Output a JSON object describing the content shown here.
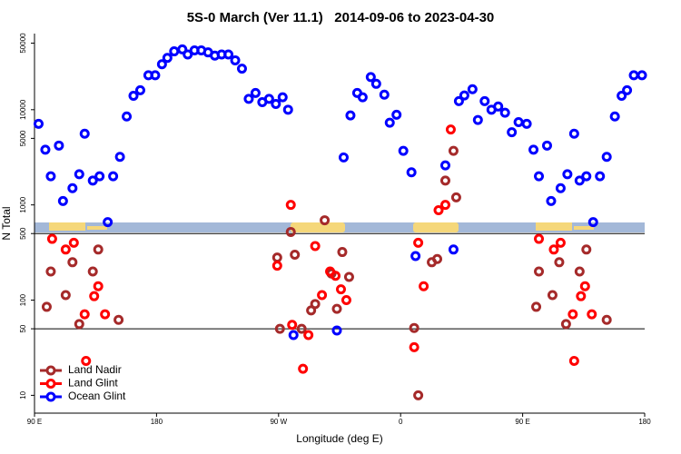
{
  "chart_data": {
    "type": "scatter",
    "title": "5S-0 March (Ver 11.1)   2014-09-06 to 2023-04-30",
    "xlabel": "Longitude (deg E)",
    "ylabel": "N Total",
    "xlim": [
      90,
      540
    ],
    "xticks": [
      {
        "value": 90,
        "label": "90 E"
      },
      180,
      {
        "value": 270,
        "label": "90 W"
      },
      {
        "value": 360,
        "label": "0"
      },
      {
        "value": 450,
        "label": "90 E"
      },
      {
        "value": 540,
        "label": "180"
      }
    ],
    "ylim": [
      6.5,
      63000
    ],
    "log_y": true,
    "yticks": [
      10,
      50,
      100,
      500,
      1000,
      5000,
      10000,
      50000
    ],
    "hlines": [
      50,
      500
    ],
    "legend": "lower left",
    "series": [
      {
        "name": "Land Nadir",
        "color": "#a52a2a",
        "x": [
          99,
          102,
          113,
          118,
          123,
          133,
          137,
          152,
          269,
          271,
          279,
          282,
          287,
          294,
          297,
          304,
          309,
          313,
          317,
          322,
          370,
          373,
          383,
          387,
          393,
          399,
          401,
          460,
          462,
          472,
          477,
          482,
          492,
          497,
          512
        ],
        "values": [
          85,
          200,
          113,
          250,
          56,
          200,
          340,
          62,
          280,
          50,
          520,
          300,
          50,
          78,
          91,
          690,
          190,
          81,
          320,
          175,
          51,
          10,
          250,
          270,
          1800,
          3700,
          1200,
          85,
          200,
          113,
          250,
          56,
          200,
          340,
          62
        ]
      },
      {
        "name": "Land Glint",
        "color": "#ff0000",
        "x": [
          103,
          113,
          119,
          127,
          134,
          137,
          142,
          128,
          279,
          269,
          280,
          288,
          292,
          297,
          302,
          308,
          312,
          316,
          320,
          370,
          373,
          377,
          388,
          393,
          397,
          462,
          473,
          478,
          487,
          493,
          496,
          501,
          488
        ],
        "values": [
          440,
          340,
          400,
          71,
          110,
          140,
          71,
          23,
          1000,
          230,
          55,
          19,
          43,
          370,
          113,
          200,
          180,
          130,
          100,
          32,
          400,
          140,
          880,
          1000,
          6200,
          440,
          340,
          400,
          71,
          110,
          140,
          71,
          23
        ]
      },
      {
        "name": "Ocean Glint",
        "color": "#0000ff",
        "x": [
          93,
          98,
          102,
          108,
          111,
          118,
          123,
          127,
          133,
          138,
          144,
          148,
          153,
          158,
          163,
          168,
          174,
          179,
          184,
          188,
          193,
          199,
          203,
          208,
          213,
          218,
          223,
          228,
          233,
          238,
          243,
          248,
          253,
          258,
          263,
          268,
          273,
          277,
          281,
          313,
          318,
          323,
          328,
          332,
          338,
          342,
          348,
          352,
          357,
          362,
          368,
          371,
          393,
          399,
          403,
          407,
          413,
          417,
          422,
          427,
          432,
          437,
          442,
          447,
          453,
          458,
          462,
          468,
          471,
          478,
          483,
          488,
          492,
          497,
          502,
          507,
          512,
          518,
          523,
          527,
          532,
          538
        ],
        "values": [
          7100,
          3800,
          2000,
          4200,
          1100,
          1500,
          2100,
          5600,
          1800,
          2000,
          660,
          2000,
          3200,
          8500,
          14000,
          16000,
          23000,
          23000,
          30000,
          35000,
          41000,
          43000,
          38000,
          42000,
          42000,
          40000,
          37000,
          38000,
          38000,
          33000,
          27000,
          13000,
          15000,
          12000,
          13000,
          11500,
          13500,
          10000,
          43,
          48,
          3150,
          8700,
          15000,
          13500,
          22000,
          18700,
          14400,
          7300,
          8850,
          3700,
          2200,
          290,
          2600,
          340,
          12300,
          14100,
          16400,
          7800,
          12300,
          10000,
          10800,
          9300,
          5800,
          7400,
          7100,
          3800,
          2000,
          4200,
          1100,
          1500,
          2100,
          5600,
          1800,
          2000,
          660,
          2000,
          3200,
          8500,
          14000,
          16000,
          23000,
          23000
        ]
      }
    ]
  }
}
